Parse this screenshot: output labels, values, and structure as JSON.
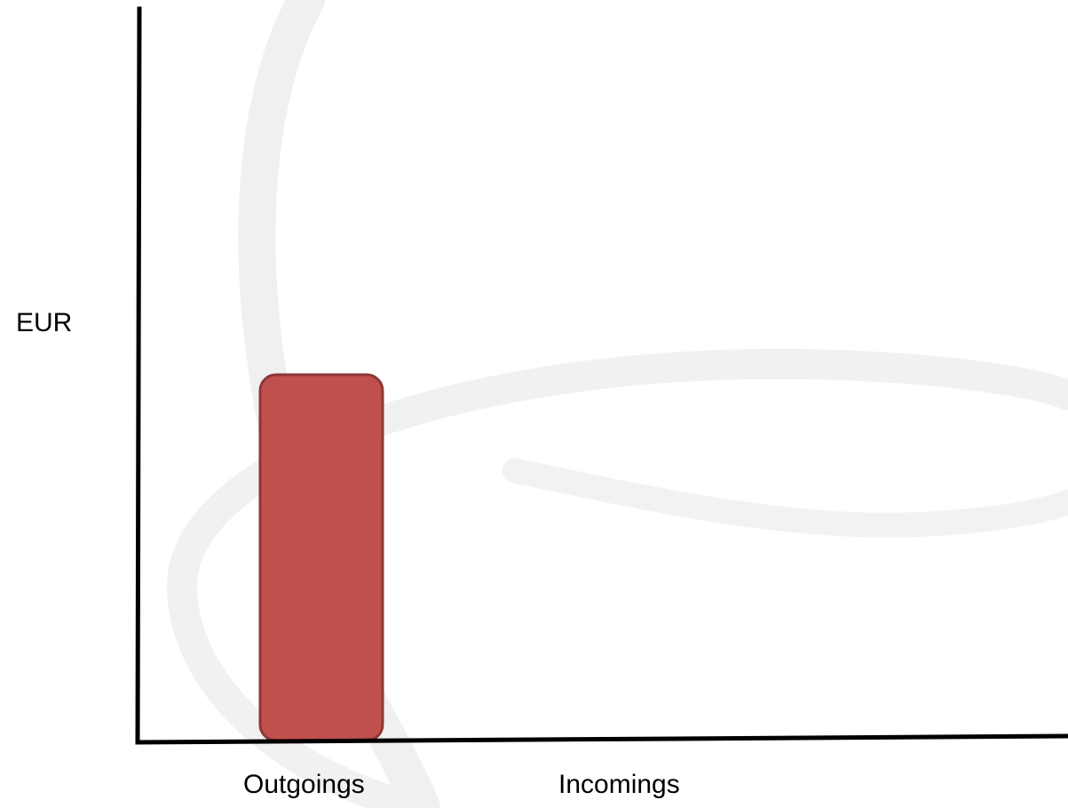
{
  "chart_data": {
    "type": "bar",
    "categories": [
      "Outgoings",
      "Incomings"
    ],
    "values": [
      0.5,
      null
    ],
    "ylabel": "EUR",
    "xlabel": "",
    "ylim": [
      0,
      1
    ],
    "grid": false,
    "bar_color": "#C0504D",
    "watermark": "light gray swoosh logo shape in background"
  }
}
